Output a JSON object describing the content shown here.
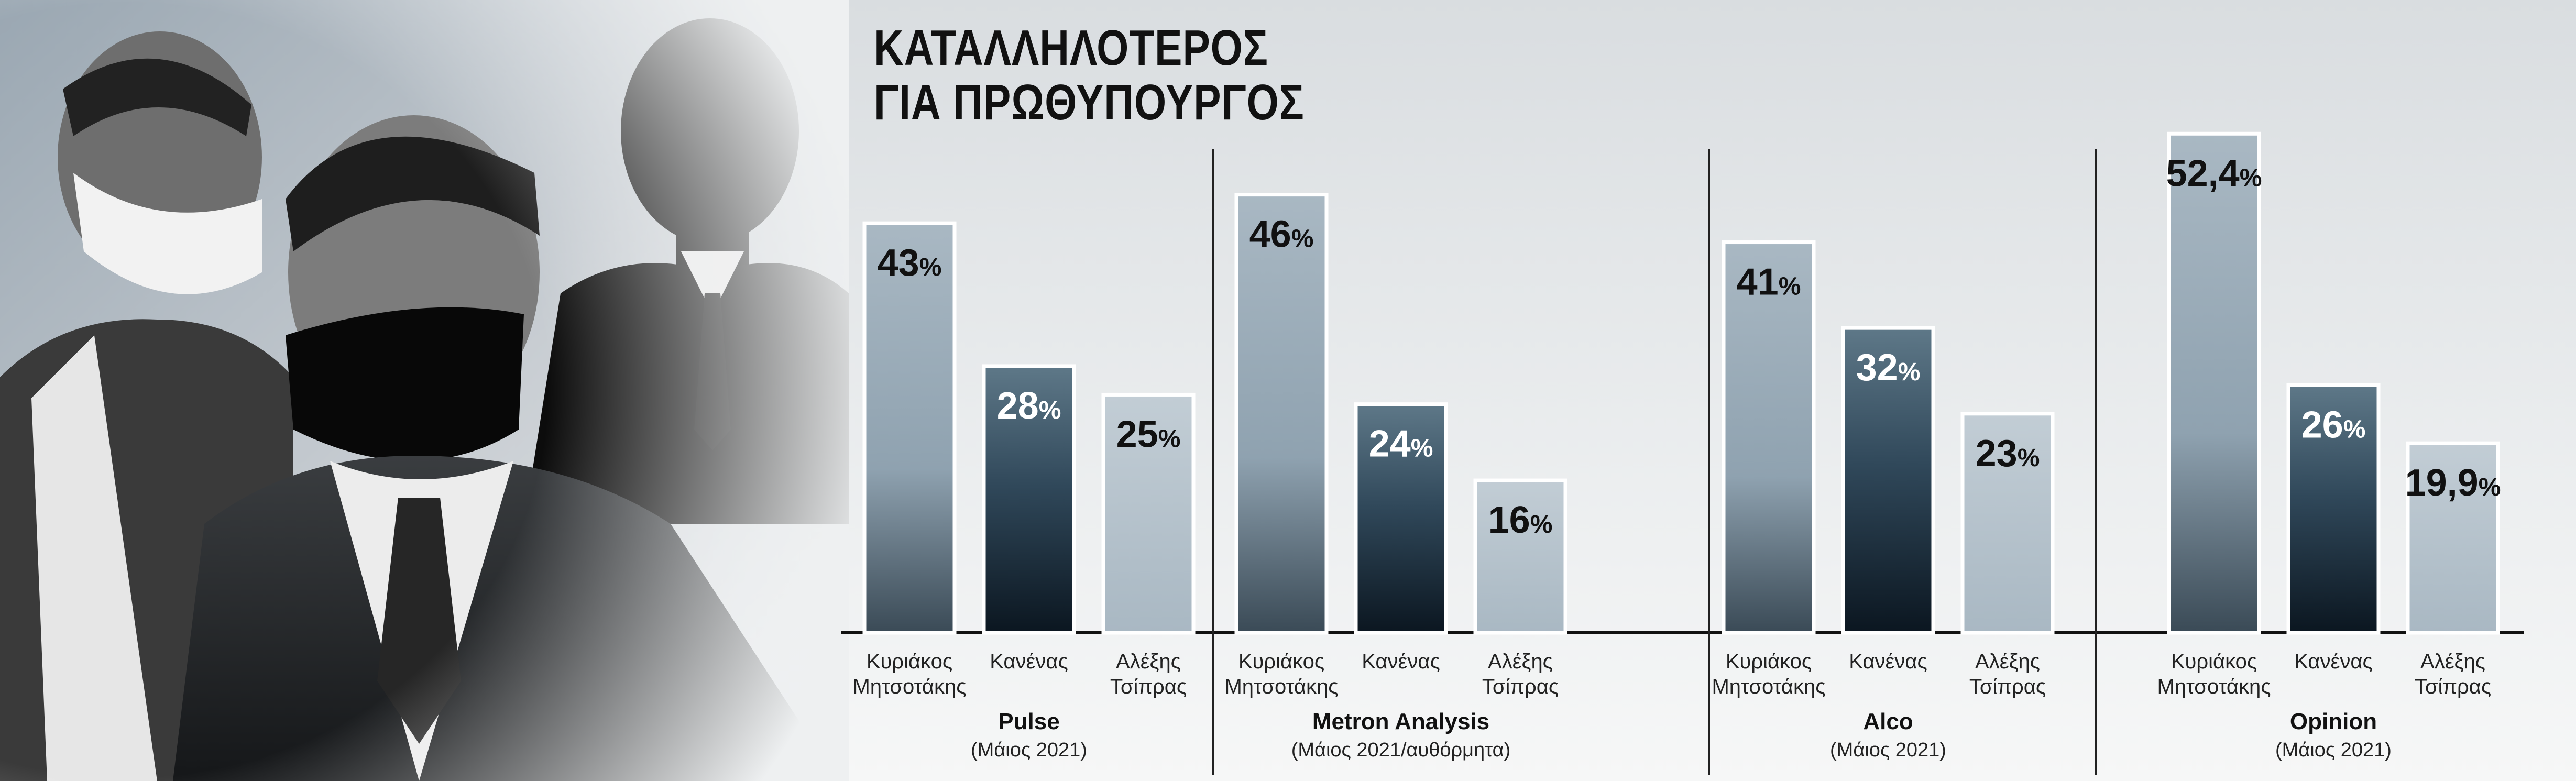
{
  "title_lines": [
    "ΚΑΤΑΛΛΗΛΟΤΕΡΟΣ",
    "ΓΙΑ ΠΡΩΘΥΠΟΥΡΓΟΣ"
  ],
  "colors": {
    "bar_light": "#8fa2b0",
    "bar_dark_top": "#5e7888",
    "bar_dark_bottom": "#0b1620",
    "bar_pale": "#a9b8c3",
    "bar_border": "#ffffff",
    "divider": "#222222",
    "baseline": "#111111"
  },
  "chart_data": {
    "type": "bar",
    "title": "ΚΑΤΑΛΛΗΛΟΤΕΡΟΣ ΓΙΑ ΠΡΩΘΥΠΟΥΡΓΟΣ",
    "categories": [
      "Κυριάκος Μητσοτάκης",
      "Κανένας",
      "Αλέξης Τσίπρας"
    ],
    "category_lines": [
      [
        "Κυριάκος",
        "Μητσοτάκης"
      ],
      [
        "Κανένας"
      ],
      [
        "Αλέξης",
        "Τσίπρας"
      ]
    ],
    "unit": "%",
    "ylim": [
      0,
      55
    ],
    "grid": false,
    "legend": "none",
    "panels": [
      {
        "pollster": "Pulse",
        "date": "(Μάιος 2021)",
        "values": [
          43,
          28,
          25
        ],
        "labels": [
          "43",
          "28",
          "25"
        ]
      },
      {
        "pollster": "Metron Analysis",
        "date": "(Μάιος 2021/αυθόρμητα)",
        "values": [
          46,
          24,
          16
        ],
        "labels": [
          "46",
          "24",
          "16"
        ]
      },
      {
        "pollster": "Alco",
        "date": "(Μάιος 2021)",
        "values": [
          41,
          32,
          23
        ],
        "labels": [
          "41",
          "32",
          "23"
        ]
      },
      {
        "pollster": "Opinion",
        "date": "(Μάιος 2021)",
        "values": [
          52.4,
          26,
          19.9
        ],
        "labels": [
          "52,4",
          "26",
          "19,9"
        ]
      }
    ]
  }
}
